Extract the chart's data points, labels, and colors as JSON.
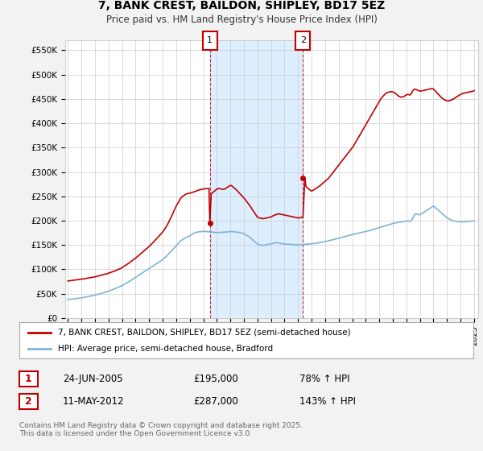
{
  "title": "7, BANK CREST, BAILDON, SHIPLEY, BD17 5EZ",
  "subtitle": "Price paid vs. HM Land Registry's House Price Index (HPI)",
  "ylabel_ticks": [
    "£0",
    "£50K",
    "£100K",
    "£150K",
    "£200K",
    "£250K",
    "£300K",
    "£350K",
    "£400K",
    "£450K",
    "£500K",
    "£550K"
  ],
  "ytick_values": [
    0,
    50000,
    100000,
    150000,
    200000,
    250000,
    300000,
    350000,
    400000,
    450000,
    500000,
    550000
  ],
  "ylim": [
    0,
    570000
  ],
  "xlim_start": 1994.8,
  "xlim_end": 2025.3,
  "plot_bg_color": "#ffffff",
  "figure_bg_color": "#f2f2f2",
  "shaded_color": "#ddeeff",
  "red_line_color": "#c00000",
  "blue_line_color": "#7fb3d9",
  "grid_color": "#cccccc",
  "marker1_year": 2005.48,
  "marker1_label": "1",
  "marker2_year": 2012.36,
  "marker2_label": "2",
  "sale1_price": 195000,
  "sale2_price": 287000,
  "legend_line1": "7, BANK CREST, BAILDON, SHIPLEY, BD17 5EZ (semi-detached house)",
  "legend_line2": "HPI: Average price, semi-detached house, Bradford",
  "table_row1": [
    "1",
    "24-JUN-2005",
    "£195,000",
    "78% ↑ HPI"
  ],
  "table_row2": [
    "2",
    "11-MAY-2012",
    "£287,000",
    "143% ↑ HPI"
  ],
  "footnote": "Contains HM Land Registry data © Crown copyright and database right 2025.\nThis data is licensed under the Open Government Licence v3.0.",
  "hpi_years": [
    1995.0,
    1995.083,
    1995.167,
    1995.25,
    1995.333,
    1995.417,
    1995.5,
    1995.583,
    1995.667,
    1995.75,
    1995.833,
    1995.917,
    1996.0,
    1996.083,
    1996.167,
    1996.25,
    1996.333,
    1996.417,
    1996.5,
    1996.583,
    1996.667,
    1996.75,
    1996.833,
    1996.917,
    1997.0,
    1997.083,
    1997.167,
    1997.25,
    1997.333,
    1997.417,
    1997.5,
    1997.583,
    1997.667,
    1997.75,
    1997.833,
    1997.917,
    1998.0,
    1998.083,
    1998.167,
    1998.25,
    1998.333,
    1998.417,
    1998.5,
    1998.583,
    1998.667,
    1998.75,
    1998.833,
    1998.917,
    1999.0,
    1999.083,
    1999.167,
    1999.25,
    1999.333,
    1999.417,
    1999.5,
    1999.583,
    1999.667,
    1999.75,
    1999.833,
    1999.917,
    2000.0,
    2000.083,
    2000.167,
    2000.25,
    2000.333,
    2000.417,
    2000.5,
    2000.583,
    2000.667,
    2000.75,
    2000.833,
    2000.917,
    2001.0,
    2001.083,
    2001.167,
    2001.25,
    2001.333,
    2001.417,
    2001.5,
    2001.583,
    2001.667,
    2001.75,
    2001.833,
    2001.917,
    2002.0,
    2002.083,
    2002.167,
    2002.25,
    2002.333,
    2002.417,
    2002.5,
    2002.583,
    2002.667,
    2002.75,
    2002.833,
    2002.917,
    2003.0,
    2003.083,
    2003.167,
    2003.25,
    2003.333,
    2003.417,
    2003.5,
    2003.583,
    2003.667,
    2003.75,
    2003.833,
    2003.917,
    2004.0,
    2004.083,
    2004.167,
    2004.25,
    2004.333,
    2004.417,
    2004.5,
    2004.583,
    2004.667,
    2004.75,
    2004.833,
    2004.917,
    2005.0,
    2005.083,
    2005.167,
    2005.25,
    2005.333,
    2005.417,
    2005.5,
    2005.583,
    2005.667,
    2005.75,
    2005.833,
    2005.917,
    2006.0,
    2006.083,
    2006.167,
    2006.25,
    2006.333,
    2006.417,
    2006.5,
    2006.583,
    2006.667,
    2006.75,
    2006.833,
    2006.917,
    2007.0,
    2007.083,
    2007.167,
    2007.25,
    2007.333,
    2007.417,
    2007.5,
    2007.583,
    2007.667,
    2007.75,
    2007.833,
    2007.917,
    2008.0,
    2008.083,
    2008.167,
    2008.25,
    2008.333,
    2008.417,
    2008.5,
    2008.583,
    2008.667,
    2008.75,
    2008.833,
    2008.917,
    2009.0,
    2009.083,
    2009.167,
    2009.25,
    2009.333,
    2009.417,
    2009.5,
    2009.583,
    2009.667,
    2009.75,
    2009.833,
    2009.917,
    2010.0,
    2010.083,
    2010.167,
    2010.25,
    2010.333,
    2010.417,
    2010.5,
    2010.583,
    2010.667,
    2010.75,
    2010.833,
    2010.917,
    2011.0,
    2011.083,
    2011.167,
    2011.25,
    2011.333,
    2011.417,
    2011.5,
    2011.583,
    2011.667,
    2011.75,
    2011.833,
    2011.917,
    2012.0,
    2012.083,
    2012.167,
    2012.25,
    2012.333,
    2012.417,
    2012.5,
    2012.583,
    2012.667,
    2012.75,
    2012.833,
    2012.917,
    2013.0,
    2013.083,
    2013.167,
    2013.25,
    2013.333,
    2013.417,
    2013.5,
    2013.583,
    2013.667,
    2013.75,
    2013.833,
    2013.917,
    2014.0,
    2014.083,
    2014.167,
    2014.25,
    2014.333,
    2014.417,
    2014.5,
    2014.583,
    2014.667,
    2014.75,
    2014.833,
    2014.917,
    2015.0,
    2015.083,
    2015.167,
    2015.25,
    2015.333,
    2015.417,
    2015.5,
    2015.583,
    2015.667,
    2015.75,
    2015.833,
    2015.917,
    2016.0,
    2016.083,
    2016.167,
    2016.25,
    2016.333,
    2016.417,
    2016.5,
    2016.583,
    2016.667,
    2016.75,
    2016.833,
    2016.917,
    2017.0,
    2017.083,
    2017.167,
    2017.25,
    2017.333,
    2017.417,
    2017.5,
    2017.583,
    2017.667,
    2017.75,
    2017.833,
    2017.917,
    2018.0,
    2018.083,
    2018.167,
    2018.25,
    2018.333,
    2018.417,
    2018.5,
    2018.583,
    2018.667,
    2018.75,
    2018.833,
    2018.917,
    2019.0,
    2019.083,
    2019.167,
    2019.25,
    2019.333,
    2019.417,
    2019.5,
    2019.583,
    2019.667,
    2019.75,
    2019.833,
    2019.917,
    2020.0,
    2020.083,
    2020.167,
    2020.25,
    2020.333,
    2020.417,
    2020.5,
    2020.583,
    2020.667,
    2020.75,
    2020.833,
    2020.917,
    2021.0,
    2021.083,
    2021.167,
    2021.25,
    2021.333,
    2021.417,
    2021.5,
    2021.583,
    2021.667,
    2021.75,
    2021.833,
    2021.917,
    2022.0,
    2022.083,
    2022.167,
    2022.25,
    2022.333,
    2022.417,
    2022.5,
    2022.583,
    2022.667,
    2022.75,
    2022.833,
    2022.917,
    2023.0,
    2023.083,
    2023.167,
    2023.25,
    2023.333,
    2023.417,
    2023.5,
    2023.583,
    2023.667,
    2023.75,
    2023.833,
    2023.917,
    2024.0,
    2024.083,
    2024.167,
    2024.25,
    2024.333,
    2024.417,
    2024.5,
    2024.583,
    2024.667,
    2024.75,
    2024.833,
    2024.917,
    2025.0
  ],
  "hpi_values": [
    38000,
    38200,
    38400,
    38600,
    38900,
    39200,
    39500,
    39800,
    40100,
    40400,
    40700,
    41000,
    41300,
    41700,
    42100,
    42500,
    43000,
    43500,
    44000,
    44500,
    45000,
    45500,
    46000,
    46500,
    47000,
    47600,
    48200,
    48800,
    49400,
    50000,
    50700,
    51400,
    52100,
    52800,
    53500,
    54300,
    55100,
    55900,
    56700,
    57500,
    58500,
    59500,
    60500,
    61500,
    62500,
    63500,
    64500,
    65500,
    66500,
    67800,
    69100,
    70400,
    71700,
    73000,
    74500,
    76000,
    77500,
    79000,
    80500,
    82000,
    83500,
    85000,
    86500,
    88000,
    89500,
    91000,
    92500,
    94000,
    95500,
    97000,
    98500,
    100000,
    101500,
    103000,
    104500,
    106000,
    107500,
    109000,
    110500,
    112000,
    113500,
    115000,
    116700,
    118400,
    120100,
    122000,
    124000,
    126000,
    128500,
    131000,
    133500,
    136000,
    138500,
    141000,
    143500,
    146000,
    148500,
    151000,
    153500,
    156000,
    158500,
    160000,
    161500,
    163000,
    164500,
    166000,
    167000,
    168000,
    169000,
    170500,
    172000,
    173500,
    174500,
    175500,
    176000,
    176500,
    177000,
    177200,
    177400,
    177600,
    177800,
    178000,
    177800,
    177600,
    177400,
    177200,
    177000,
    176700,
    176400,
    176100,
    175800,
    175500,
    175500,
    175600,
    175700,
    175800,
    175900,
    176000,
    176200,
    176400,
    176600,
    176800,
    177000,
    177200,
    177400,
    177600,
    177500,
    177200,
    176900,
    176600,
    176300,
    176000,
    175500,
    175000,
    174500,
    174000,
    173500,
    172000,
    170500,
    169000,
    167500,
    166000,
    164000,
    162000,
    160000,
    158000,
    156000,
    154000,
    152000,
    151000,
    150500,
    150000,
    149500,
    149000,
    149500,
    150000,
    150500,
    151000,
    151500,
    152000,
    152500,
    153000,
    153500,
    154000,
    154500,
    155000,
    154500,
    154000,
    153500,
    153000,
    152500,
    152000,
    152000,
    152000,
    151800,
    151600,
    151400,
    151200,
    151000,
    150800,
    150600,
    150400,
    150200,
    150000,
    150000,
    150200,
    150400,
    150600,
    150800,
    151000,
    151200,
    151400,
    151600,
    151800,
    152000,
    152200,
    152400,
    152700,
    153000,
    153300,
    153600,
    154000,
    154400,
    154800,
    155200,
    155600,
    156000,
    156500,
    157000,
    157500,
    158000,
    158500,
    159000,
    159600,
    160200,
    160800,
    161400,
    162000,
    162600,
    163200,
    163800,
    164400,
    165000,
    165600,
    166200,
    166800,
    167400,
    168000,
    168700,
    169400,
    170100,
    170800,
    171500,
    172000,
    172500,
    173000,
    173500,
    174000,
    174500,
    175000,
    175500,
    176000,
    176500,
    177000,
    177500,
    178000,
    178700,
    179400,
    180100,
    180800,
    181500,
    182200,
    182900,
    183600,
    184300,
    185000,
    185700,
    186400,
    187100,
    187800,
    188500,
    189200,
    189900,
    190600,
    191300,
    192000,
    192700,
    193400,
    194100,
    194800,
    195200,
    195600,
    196000,
    196400,
    196800,
    197200,
    197600,
    198000,
    198400,
    198800,
    199200,
    199400,
    199000,
    198500,
    198800,
    202000,
    207000,
    211000,
    214000,
    213500,
    213000,
    212500,
    212000,
    213500,
    215000,
    216500,
    218000,
    219500,
    221000,
    222500,
    224000,
    225500,
    227000,
    228500,
    230000,
    228000,
    226000,
    224000,
    222000,
    220000,
    218000,
    216000,
    214000,
    212000,
    210000,
    208000,
    206000,
    204500,
    203000,
    202000,
    201000,
    200000,
    199500,
    199000,
    198700,
    198400,
    198100,
    197800,
    197500,
    197400,
    197500,
    197700,
    197900,
    198100,
    198300,
    198500,
    198700,
    198900,
    199100,
    199300,
    199500
  ],
  "price_years": [
    1995.0,
    1995.083,
    1995.167,
    1995.25,
    1995.333,
    1995.417,
    1995.5,
    1995.583,
    1995.667,
    1995.75,
    1995.833,
    1995.917,
    1996.0,
    1996.083,
    1996.167,
    1996.25,
    1996.333,
    1996.417,
    1996.5,
    1996.583,
    1996.667,
    1996.75,
    1996.833,
    1996.917,
    1997.0,
    1997.083,
    1997.167,
    1997.25,
    1997.333,
    1997.417,
    1997.5,
    1997.583,
    1997.667,
    1997.75,
    1997.833,
    1997.917,
    1998.0,
    1998.083,
    1998.167,
    1998.25,
    1998.333,
    1998.417,
    1998.5,
    1998.583,
    1998.667,
    1998.75,
    1998.833,
    1998.917,
    1999.0,
    1999.083,
    1999.167,
    1999.25,
    1999.333,
    1999.417,
    1999.5,
    1999.583,
    1999.667,
    1999.75,
    1999.833,
    1999.917,
    2000.0,
    2000.083,
    2000.167,
    2000.25,
    2000.333,
    2000.417,
    2000.5,
    2000.583,
    2000.667,
    2000.75,
    2000.833,
    2000.917,
    2001.0,
    2001.083,
    2001.167,
    2001.25,
    2001.333,
    2001.417,
    2001.5,
    2001.583,
    2001.667,
    2001.75,
    2001.833,
    2001.917,
    2002.0,
    2002.083,
    2002.167,
    2002.25,
    2002.333,
    2002.417,
    2002.5,
    2002.583,
    2002.667,
    2002.75,
    2002.833,
    2002.917,
    2003.0,
    2003.083,
    2003.167,
    2003.25,
    2003.333,
    2003.417,
    2003.5,
    2003.583,
    2003.667,
    2003.75,
    2003.833,
    2003.917,
    2004.0,
    2004.083,
    2004.167,
    2004.25,
    2004.333,
    2004.417,
    2004.5,
    2004.583,
    2004.667,
    2004.75,
    2004.833,
    2004.917,
    2005.0,
    2005.083,
    2005.167,
    2005.25,
    2005.333,
    2005.417,
    2005.48,
    2005.583,
    2005.667,
    2005.75,
    2005.833,
    2005.917,
    2006.0,
    2006.083,
    2006.167,
    2006.25,
    2006.333,
    2006.417,
    2006.5,
    2006.583,
    2006.667,
    2006.75,
    2006.833,
    2006.917,
    2007.0,
    2007.083,
    2007.167,
    2007.25,
    2007.333,
    2007.417,
    2007.5,
    2007.583,
    2007.667,
    2007.75,
    2007.833,
    2007.917,
    2008.0,
    2008.083,
    2008.167,
    2008.25,
    2008.333,
    2008.417,
    2008.5,
    2008.583,
    2008.667,
    2008.75,
    2008.833,
    2008.917,
    2009.0,
    2009.083,
    2009.167,
    2009.25,
    2009.333,
    2009.417,
    2009.5,
    2009.583,
    2009.667,
    2009.75,
    2009.833,
    2009.917,
    2010.0,
    2010.083,
    2010.167,
    2010.25,
    2010.333,
    2010.417,
    2010.5,
    2010.583,
    2010.667,
    2010.75,
    2010.833,
    2010.917,
    2011.0,
    2011.083,
    2011.167,
    2011.25,
    2011.333,
    2011.417,
    2011.5,
    2011.583,
    2011.667,
    2011.75,
    2011.833,
    2011.917,
    2012.0,
    2012.083,
    2012.167,
    2012.25,
    2012.333,
    2012.36,
    2012.5,
    2012.583,
    2012.667,
    2012.75,
    2012.833,
    2012.917,
    2013.0,
    2013.083,
    2013.167,
    2013.25,
    2013.333,
    2013.417,
    2013.5,
    2013.583,
    2013.667,
    2013.75,
    2013.833,
    2013.917,
    2014.0,
    2014.083,
    2014.167,
    2014.25,
    2014.333,
    2014.417,
    2014.5,
    2014.583,
    2014.667,
    2014.75,
    2014.833,
    2014.917,
    2015.0,
    2015.083,
    2015.167,
    2015.25,
    2015.333,
    2015.417,
    2015.5,
    2015.583,
    2015.667,
    2015.75,
    2015.833,
    2015.917,
    2016.0,
    2016.083,
    2016.167,
    2016.25,
    2016.333,
    2016.417,
    2016.5,
    2016.583,
    2016.667,
    2016.75,
    2016.833,
    2016.917,
    2017.0,
    2017.083,
    2017.167,
    2017.25,
    2017.333,
    2017.417,
    2017.5,
    2017.583,
    2017.667,
    2017.75,
    2017.833,
    2017.917,
    2018.0,
    2018.083,
    2018.167,
    2018.25,
    2018.333,
    2018.417,
    2018.5,
    2018.583,
    2018.667,
    2018.75,
    2018.833,
    2018.917,
    2019.0,
    2019.083,
    2019.167,
    2019.25,
    2019.333,
    2019.417,
    2019.5,
    2019.583,
    2019.667,
    2019.75,
    2019.833,
    2019.917,
    2020.0,
    2020.083,
    2020.167,
    2020.25,
    2020.333,
    2020.417,
    2020.5,
    2020.583,
    2020.667,
    2020.75,
    2020.833,
    2020.917,
    2021.0,
    2021.083,
    2021.167,
    2021.25,
    2021.333,
    2021.417,
    2021.5,
    2021.583,
    2021.667,
    2021.75,
    2021.833,
    2021.917,
    2022.0,
    2022.083,
    2022.167,
    2022.25,
    2022.333,
    2022.417,
    2022.5,
    2022.583,
    2022.667,
    2022.75,
    2022.833,
    2022.917,
    2023.0,
    2023.083,
    2023.167,
    2023.25,
    2023.333,
    2023.417,
    2023.5,
    2023.583,
    2023.667,
    2023.75,
    2023.833,
    2023.917,
    2024.0,
    2024.083,
    2024.167,
    2024.25,
    2024.333,
    2024.417,
    2024.5,
    2024.583,
    2024.667,
    2024.75,
    2024.833,
    2024.917,
    2025.0
  ],
  "price_values": [
    76000,
    76300,
    76600,
    76900,
    77200,
    77500,
    77800,
    78100,
    78400,
    78700,
    79000,
    79300,
    79600,
    80000,
    80400,
    80800,
    81200,
    81600,
    82000,
    82400,
    82800,
    83200,
    83600,
    84000,
    84500,
    85100,
    85700,
    86300,
    86900,
    87500,
    88100,
    88700,
    89300,
    89900,
    90500,
    91200,
    92000,
    92800,
    93600,
    94400,
    95200,
    96000,
    97000,
    98000,
    99000,
    100000,
    101000,
    102000,
    103500,
    105000,
    106500,
    108000,
    109500,
    111000,
    112700,
    114400,
    116100,
    117800,
    119500,
    121200,
    123000,
    125000,
    127000,
    129000,
    131000,
    133000,
    135000,
    137000,
    139000,
    141000,
    143000,
    145000,
    147000,
    149000,
    151500,
    154000,
    156500,
    159000,
    161500,
    164000,
    166500,
    169000,
    171500,
    174000,
    176800,
    180000,
    183500,
    187000,
    191000,
    195500,
    200000,
    205000,
    210000,
    215000,
    220000,
    225000,
    230000,
    234000,
    238000,
    242000,
    246000,
    248500,
    250500,
    252000,
    253500,
    255000,
    255500,
    256000,
    256500,
    257000,
    257800,
    258600,
    259400,
    260000,
    261000,
    262000,
    263000,
    263500,
    264000,
    264500,
    265000,
    265300,
    265600,
    265900,
    266000,
    266200,
    195000,
    255000,
    257000,
    259000,
    261000,
    263000,
    265000,
    265500,
    266000,
    265500,
    265000,
    264500,
    264000,
    265000,
    266500,
    268000,
    269500,
    271000,
    272500,
    272000,
    270000,
    268000,
    266000,
    264000,
    261500,
    259000,
    256500,
    254000,
    251500,
    249000,
    246500,
    243500,
    240500,
    237500,
    234500,
    231500,
    228000,
    224500,
    221000,
    217500,
    214000,
    210500,
    207000,
    206000,
    205500,
    205000,
    204500,
    204000,
    204500,
    205000,
    205500,
    206000,
    206500,
    207000,
    208000,
    209000,
    210000,
    211000,
    212000,
    213000,
    213500,
    214000,
    213500,
    213000,
    212500,
    212000,
    211500,
    211000,
    210500,
    210000,
    209500,
    209000,
    208500,
    208000,
    207500,
    207000,
    206500,
    206000,
    205500,
    205800,
    206200,
    206500,
    206800,
    207000,
    287000,
    270000,
    268000,
    266000,
    264000,
    262000,
    261000,
    262000,
    263500,
    265000,
    266500,
    268000,
    269500,
    271000,
    273000,
    275000,
    277000,
    279000,
    281000,
    283000,
    285000,
    287000,
    290000,
    293000,
    296000,
    299000,
    302000,
    305000,
    308000,
    311000,
    314000,
    317000,
    320000,
    323000,
    326000,
    329000,
    332000,
    335000,
    338000,
    341000,
    344000,
    347000,
    350000,
    353000,
    357000,
    361000,
    365000,
    369000,
    373000,
    377000,
    381000,
    385000,
    389000,
    393000,
    397000,
    401000,
    405000,
    409000,
    413000,
    417000,
    421000,
    425000,
    429000,
    433000,
    437000,
    441000,
    445000,
    449000,
    452000,
    455000,
    457500,
    460000,
    461500,
    463000,
    464000,
    464500,
    465000,
    465000,
    464500,
    463500,
    462000,
    460000,
    458000,
    456000,
    455000,
    454000,
    454000,
    454500,
    455500,
    457000,
    458500,
    459500,
    459000,
    458000,
    460000,
    464000,
    468000,
    470000,
    470000,
    469000,
    468000,
    467000,
    466000,
    466500,
    467000,
    467500,
    468000,
    468500,
    469000,
    469500,
    470000,
    470500,
    471000,
    471500,
    470000,
    468000,
    465500,
    463000,
    460500,
    458000,
    455500,
    453000,
    451000,
    449500,
    448000,
    447000,
    446500,
    446000,
    446500,
    447000,
    448000,
    449000,
    450500,
    452000,
    453500,
    455000,
    456500,
    458000,
    459500,
    460500,
    461500,
    462000,
    462500,
    463000,
    463500,
    464000,
    464500,
    465000,
    465500,
    466000,
    467000
  ]
}
